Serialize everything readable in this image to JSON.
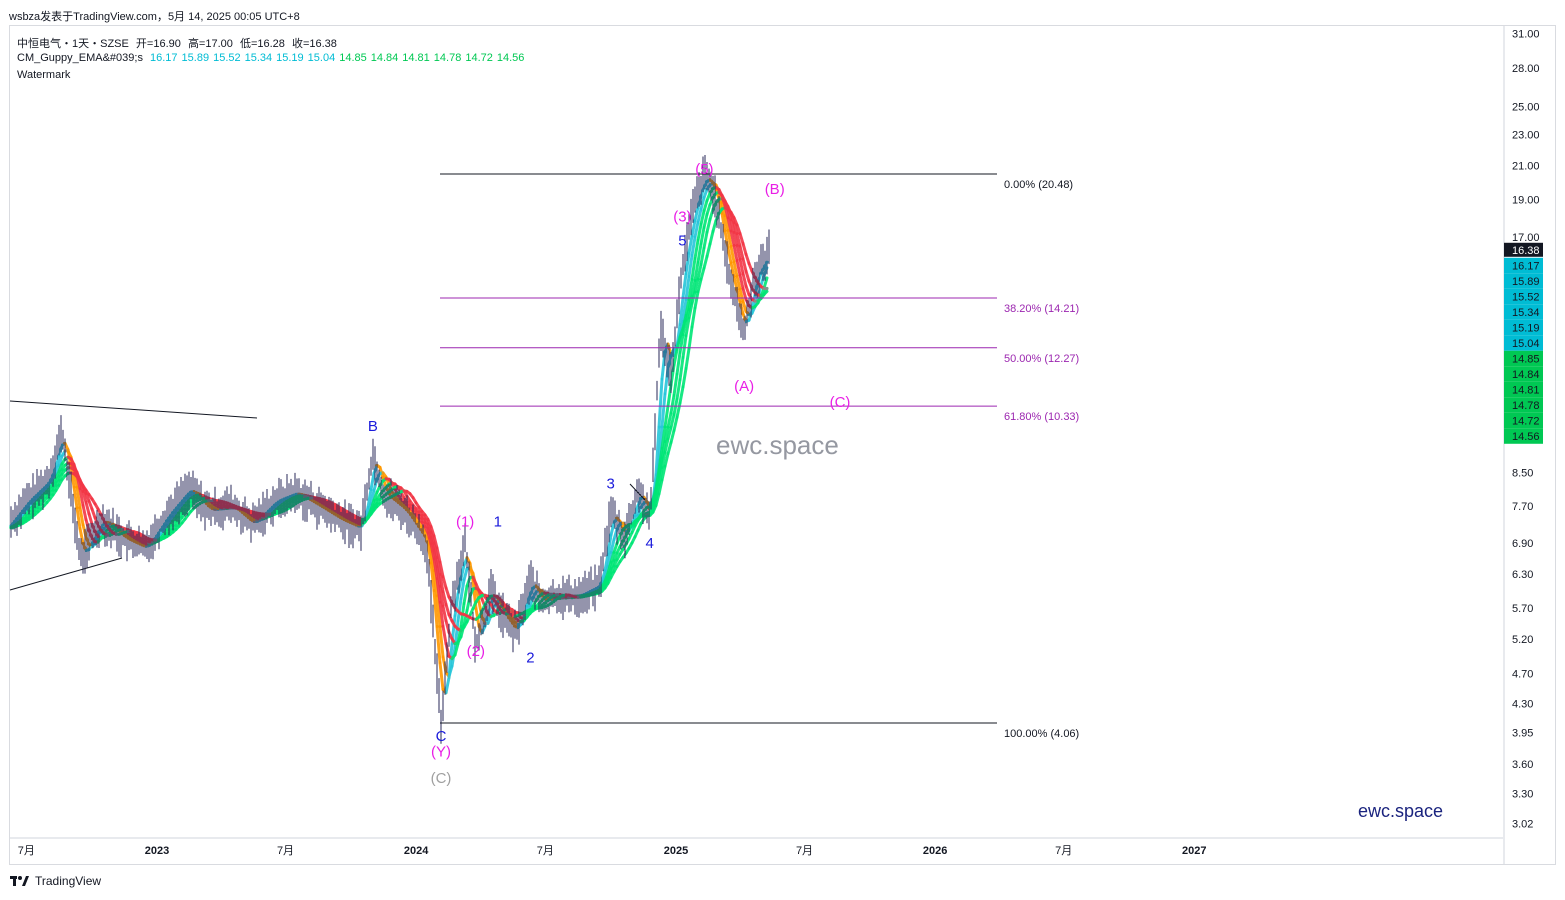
{
  "header": {
    "publish_line": "wsbza发表于TradingView.com，5月 14, 2025 00:05 UTC+8"
  },
  "legend": {
    "symbol": "中恒电气・1天・SZSE",
    "open": "开=16.90",
    "high": "高=17.00",
    "low": "低=16.28",
    "close": "收=16.38",
    "indicator_name": "CM_Guppy_EMA&#039;s",
    "indicator_values": [
      {
        "value": "16.17",
        "color": "#00bcd4"
      },
      {
        "value": "15.89",
        "color": "#00bcd4"
      },
      {
        "value": "15.52",
        "color": "#00bcd4"
      },
      {
        "value": "15.34",
        "color": "#00bcd4"
      },
      {
        "value": "15.19",
        "color": "#00bcd4"
      },
      {
        "value": "15.04",
        "color": "#00bcd4"
      },
      {
        "value": "14.85",
        "color": "#00c853"
      },
      {
        "value": "14.84",
        "color": "#00c853"
      },
      {
        "value": "14.81",
        "color": "#00c853"
      },
      {
        "value": "14.78",
        "color": "#00c853"
      },
      {
        "value": "14.72",
        "color": "#00c853"
      },
      {
        "value": "14.56",
        "color": "#00c853"
      }
    ],
    "watermark_label": "Watermark"
  },
  "watermarks": {
    "center": "ewc.space",
    "bottom_right": "ewc.space"
  },
  "footer": {
    "brand": "TradingView"
  },
  "colors": {
    "wave_magenta": "#e91ee6",
    "wave_blue": "#1a1adb",
    "wave_gray": "#a0a0a0",
    "fib_line": "#9c27b0",
    "guppy_up": "#00e676",
    "guppy_down": "#f23645",
    "guppy_fast_up": "#26c6da",
    "guppy_fast_down": "#ff9800",
    "last_price_bg": "#131722"
  },
  "chart_data": {
    "type": "line",
    "title": "中恒电气・1天・SZSE",
    "scale": "log",
    "x_axis": {
      "ticks": [
        "7月",
        "2023",
        "7月",
        "2024",
        "7月",
        "2025",
        "7月",
        "2026",
        "7月",
        "2027"
      ],
      "tick_dates": [
        "2022-07-01",
        "2023-01-01",
        "2023-07-01",
        "2024-01-01",
        "2024-07-01",
        "2025-01-01",
        "2025-07-01",
        "2026-01-01",
        "2026-07-01",
        "2027-01-01"
      ]
    },
    "y_axis": {
      "ticks": [
        "31.00",
        "28.00",
        "25.00",
        "23.00",
        "21.00",
        "19.00",
        "17.00",
        "8.50",
        "7.70",
        "6.90",
        "6.30",
        "5.70",
        "5.20",
        "4.70",
        "4.30",
        "3.95",
        "3.60",
        "3.30",
        "3.02"
      ],
      "range": [
        2.9,
        32.0
      ]
    },
    "last_price": "16.38",
    "series": [
      {
        "name": "中恒电气",
        "x": [
          "2022-06-01",
          "2022-07-01",
          "2022-08-01",
          "2022-08-20",
          "2022-09-15",
          "2022-10-15",
          "2022-11-15",
          "2022-12-15",
          "2023-01-15",
          "2023-02-15",
          "2023-03-15",
          "2023-04-15",
          "2023-05-15",
          "2023-06-15",
          "2023-07-15",
          "2023-08-15",
          "2023-09-15",
          "2023-10-15",
          "2023-11-01",
          "2023-11-15",
          "2023-12-15",
          "2024-01-15",
          "2024-02-05",
          "2024-02-20",
          "2024-03-10",
          "2024-03-25",
          "2024-04-15",
          "2024-05-01",
          "2024-05-20",
          "2024-06-10",
          "2024-06-25",
          "2024-07-15",
          "2024-08-15",
          "2024-09-15",
          "2024-10-01",
          "2024-10-20",
          "2024-11-10",
          "2024-11-25",
          "2024-12-10",
          "2024-12-25",
          "2025-01-10",
          "2025-01-25",
          "2025-02-10",
          "2025-02-25",
          "2025-03-10",
          "2025-03-25",
          "2025-04-07",
          "2025-04-20",
          "2025-05-13"
        ],
        "values": [
          7.2,
          7.8,
          8.3,
          9.6,
          6.6,
          7.4,
          7.0,
          6.8,
          7.5,
          8.1,
          7.6,
          7.7,
          7.3,
          7.8,
          8.0,
          7.7,
          7.4,
          7.2,
          9.0,
          8.0,
          7.6,
          6.9,
          4.06,
          5.8,
          6.9,
          5.1,
          6.0,
          5.6,
          5.3,
          6.2,
          5.8,
          5.9,
          5.9,
          6.1,
          7.6,
          7.0,
          8.1,
          7.3,
          13.0,
          11.5,
          15.6,
          18.5,
          20.48,
          19.3,
          16.3,
          14.2,
          12.8,
          15.0,
          16.38
        ]
      }
    ],
    "fibonacci": [
      {
        "label": "0.00% (20.48)",
        "value": 20.48
      },
      {
        "label": "38.20% (14.21)",
        "value": 14.21
      },
      {
        "label": "50.00% (12.27)",
        "value": 12.27
      },
      {
        "label": "61.80% (10.33)",
        "value": 10.33
      },
      {
        "label": "100.00% (4.06)",
        "value": 4.06
      }
    ],
    "guppy_values": [
      "16.17",
      "15.89",
      "15.52",
      "15.34",
      "15.19",
      "15.04",
      "14.85",
      "14.84",
      "14.81",
      "14.78",
      "14.72",
      "14.56"
    ],
    "wave_labels": [
      {
        "text": "(5)",
        "color": "magenta",
        "date": "2025-02-10",
        "price": 20.48
      },
      {
        "text": "(B)",
        "color": "magenta",
        "date": "2025-05-20",
        "price": 19.3
      },
      {
        "text": "(3)",
        "color": "magenta",
        "date": "2025-01-10",
        "price": 17.8
      },
      {
        "text": "5",
        "color": "blue",
        "date": "2025-01-10",
        "price": 16.6
      },
      {
        "text": "(A)",
        "color": "magenta",
        "date": "2025-04-07",
        "price": 10.8
      },
      {
        "text": "(C)",
        "color": "magenta",
        "date": "2025-08-20",
        "price": 10.3
      },
      {
        "text": "B",
        "color": "blue",
        "date": "2023-11-01",
        "price": 9.6
      },
      {
        "text": "3",
        "color": "blue",
        "date": "2024-10-01",
        "price": 8.1
      },
      {
        "text": "(1)",
        "color": "magenta",
        "date": "2024-03-10",
        "price": 7.25
      },
      {
        "text": "1",
        "color": "blue",
        "date": "2024-04-25",
        "price": 7.25
      },
      {
        "text": "4",
        "color": "blue",
        "date": "2024-11-25",
        "price": 6.8
      },
      {
        "text": "(2)",
        "color": "magenta",
        "date": "2024-03-25",
        "price": 4.95
      },
      {
        "text": "2",
        "color": "blue",
        "date": "2024-06-10",
        "price": 4.85
      },
      {
        "text": "C",
        "color": "blue",
        "date": "2024-02-05",
        "price": 3.85
      },
      {
        "text": "(Y)",
        "color": "magenta",
        "date": "2024-02-05",
        "price": 3.68
      },
      {
        "text": "(C)",
        "color": "gray",
        "date": "2024-02-05",
        "price": 3.4
      }
    ]
  }
}
